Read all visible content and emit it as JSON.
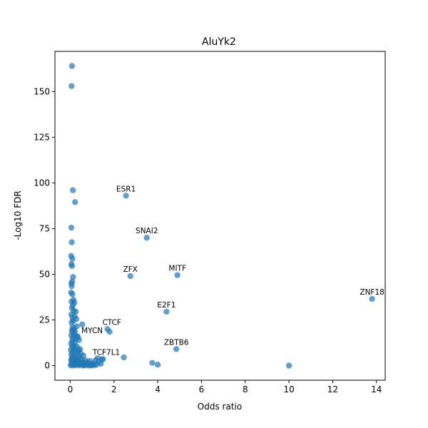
{
  "chart_data": {
    "type": "scatter",
    "title": "AluYk2",
    "xlabel": "Odds ratio",
    "ylabel": "-Log10 FDR",
    "xlim": [
      -0.7,
      14.4
    ],
    "ylim": [
      -8,
      172
    ],
    "xticks": [
      0,
      2,
      4,
      6,
      8,
      10,
      12,
      14
    ],
    "yticks": [
      0,
      25,
      50,
      75,
      100,
      125,
      150
    ],
    "grid": false,
    "point_color": "#1f77b4",
    "points": [
      {
        "x": 0.08,
        "y": 164
      },
      {
        "x": 0.06,
        "y": 153
      },
      {
        "x": 0.12,
        "y": 96
      },
      {
        "x": 0.22,
        "y": 89.5
      },
      {
        "x": 0.05,
        "y": 75.5
      },
      {
        "x": 0.07,
        "y": 67.5
      },
      {
        "x": 0.04,
        "y": 60
      },
      {
        "x": 0.1,
        "y": 58.5
      },
      {
        "x": 0.05,
        "y": 55.5
      },
      {
        "x": 0.08,
        "y": 54.5
      },
      {
        "x": 0.13,
        "y": 48.5
      },
      {
        "x": 0.09,
        "y": 46
      },
      {
        "x": 0.05,
        "y": 45
      },
      {
        "x": 0.07,
        "y": 43.5
      },
      {
        "x": 0.04,
        "y": 40
      },
      {
        "x": 0.1,
        "y": 39
      },
      {
        "x": 0.15,
        "y": 36
      },
      {
        "x": 0.06,
        "y": 35
      },
      {
        "x": 0.19,
        "y": 34.5
      },
      {
        "x": 0.12,
        "y": 33
      },
      {
        "x": 0.08,
        "y": 31.5
      },
      {
        "x": 0.16,
        "y": 30
      },
      {
        "x": 0.25,
        "y": 29.5
      },
      {
        "x": 0.05,
        "y": 28
      },
      {
        "x": 0.2,
        "y": 27
      },
      {
        "x": 0.1,
        "y": 26
      },
      {
        "x": 0.28,
        "y": 25.5
      },
      {
        "x": 0.14,
        "y": 24.5
      },
      {
        "x": 0.06,
        "y": 23.5
      },
      {
        "x": 0.55,
        "y": 22.5
      },
      {
        "x": 0.3,
        "y": 21.5
      },
      {
        "x": 0.11,
        "y": 21
      },
      {
        "x": 0.18,
        "y": 20
      },
      {
        "x": 0.07,
        "y": 19
      },
      {
        "x": 0.22,
        "y": 18.5
      },
      {
        "x": 0.15,
        "y": 17.5
      },
      {
        "x": 0.05,
        "y": 16.5
      },
      {
        "x": 0.33,
        "y": 16
      },
      {
        "x": 0.12,
        "y": 15
      },
      {
        "x": 0.26,
        "y": 14.5
      },
      {
        "x": 0.4,
        "y": 14
      },
      {
        "x": 0.09,
        "y": 13.5
      },
      {
        "x": 0.2,
        "y": 12.5
      },
      {
        "x": 0.04,
        "y": 12
      },
      {
        "x": 0.14,
        "y": 11
      },
      {
        "x": 0.3,
        "y": 10.5
      },
      {
        "x": 0.08,
        "y": 10
      },
      {
        "x": 0.22,
        "y": 9.5
      },
      {
        "x": 0.45,
        "y": 9
      },
      {
        "x": 0.03,
        "y": 8.5
      },
      {
        "x": 0.17,
        "y": 8
      },
      {
        "x": 0.35,
        "y": 7.5
      },
      {
        "x": 0.1,
        "y": 7
      },
      {
        "x": 0.28,
        "y": 6.5
      },
      {
        "x": 0.05,
        "y": 6
      },
      {
        "x": 0.6,
        "y": 5.5
      },
      {
        "x": 0.2,
        "y": 5
      },
      {
        "x": 0.42,
        "y": 5
      },
      {
        "x": 0.13,
        "y": 4.5
      },
      {
        "x": 0.32,
        "y": 4
      },
      {
        "x": 0.07,
        "y": 4
      },
      {
        "x": 0.5,
        "y": 3.5
      },
      {
        "x": 0.25,
        "y": 3
      },
      {
        "x": 0.04,
        "y": 3
      },
      {
        "x": 0.38,
        "y": 2.5
      },
      {
        "x": 0.16,
        "y": 2.5
      },
      {
        "x": 0.55,
        "y": 2
      },
      {
        "x": 0.3,
        "y": 2
      },
      {
        "x": 0.1,
        "y": 1.5
      },
      {
        "x": 0.65,
        "y": 1.5
      },
      {
        "x": 0.45,
        "y": 1
      },
      {
        "x": 0.2,
        "y": 1
      },
      {
        "x": 0.05,
        "y": 0.8
      },
      {
        "x": 0.75,
        "y": 0.8
      },
      {
        "x": 0.35,
        "y": 0.6
      },
      {
        "x": 0.9,
        "y": 0.6
      },
      {
        "x": 0.55,
        "y": 0.4
      },
      {
        "x": 1.0,
        "y": 0.4
      },
      {
        "x": 0.25,
        "y": 0.3
      },
      {
        "x": 0.7,
        "y": 0.2
      },
      {
        "x": 1.1,
        "y": 0.2
      },
      {
        "x": 0.02,
        "y": 0.1
      },
      {
        "x": 0.4,
        "y": 0.1
      },
      {
        "x": 0.85,
        "y": 0.1
      },
      {
        "x": 1.2,
        "y": 0.5
      },
      {
        "x": 0.15,
        "y": 0
      },
      {
        "x": 0.6,
        "y": 0
      },
      {
        "x": 0.95,
        "y": 0
      },
      {
        "x": 0.48,
        "y": 6.5
      },
      {
        "x": 0.38,
        "y": 8.5
      },
      {
        "x": 0.12,
        "y": 19.5
      },
      {
        "x": 0.2,
        "y": 16.5
      },
      {
        "x": 0.08,
        "y": 2
      },
      {
        "x": 0.28,
        "y": 1.2
      },
      {
        "x": 0.8,
        "y": 1.8
      },
      {
        "x": 1.05,
        "y": 1.2
      },
      {
        "x": 1.3,
        "y": 2.0
      },
      {
        "x": 1.4,
        "y": 1.0
      },
      {
        "x": 1.5,
        "y": 3.5
      },
      {
        "x": 1.25,
        "y": 4.0
      },
      {
        "x": 0.68,
        "y": 3
      },
      {
        "x": 0.9,
        "y": 2.5
      },
      {
        "x": 1.15,
        "y": 2.8
      },
      {
        "x": 2.55,
        "y": 93
      },
      {
        "x": 3.5,
        "y": 70
      },
      {
        "x": 2.75,
        "y": 49
      },
      {
        "x": 4.9,
        "y": 49.5
      },
      {
        "x": 13.8,
        "y": 36.5
      },
      {
        "x": 4.4,
        "y": 29.5
      },
      {
        "x": 1.7,
        "y": 20
      },
      {
        "x": 1.8,
        "y": 18.5
      },
      {
        "x": 0.35,
        "y": 15.5
      },
      {
        "x": 4.85,
        "y": 9
      },
      {
        "x": 2.45,
        "y": 4.5
      },
      {
        "x": 1.45,
        "y": 3.5
      },
      {
        "x": 3.75,
        "y": 1.5
      },
      {
        "x": 4.0,
        "y": 0.5
      },
      {
        "x": 10.0,
        "y": 0
      }
    ],
    "annotations": [
      {
        "text": "ESR1",
        "x": 2.55,
        "y": 93
      },
      {
        "text": "SNAI2",
        "x": 3.5,
        "y": 70
      },
      {
        "text": "ZFX",
        "x": 2.75,
        "y": 49
      },
      {
        "text": "MITF",
        "x": 4.9,
        "y": 49.5
      },
      {
        "text": "ZNF18",
        "x": 13.8,
        "y": 36.5
      },
      {
        "text": "E2F1",
        "x": 4.4,
        "y": 29.5
      },
      {
        "text": "CTCF",
        "x": 1.9,
        "y": 20
      },
      {
        "text": "MYCN",
        "x": 1.0,
        "y": 15.5
      },
      {
        "text": "ZBTB6",
        "x": 4.85,
        "y": 9
      },
      {
        "text": "TCF7L1",
        "x": 1.65,
        "y": 3.5
      }
    ]
  }
}
